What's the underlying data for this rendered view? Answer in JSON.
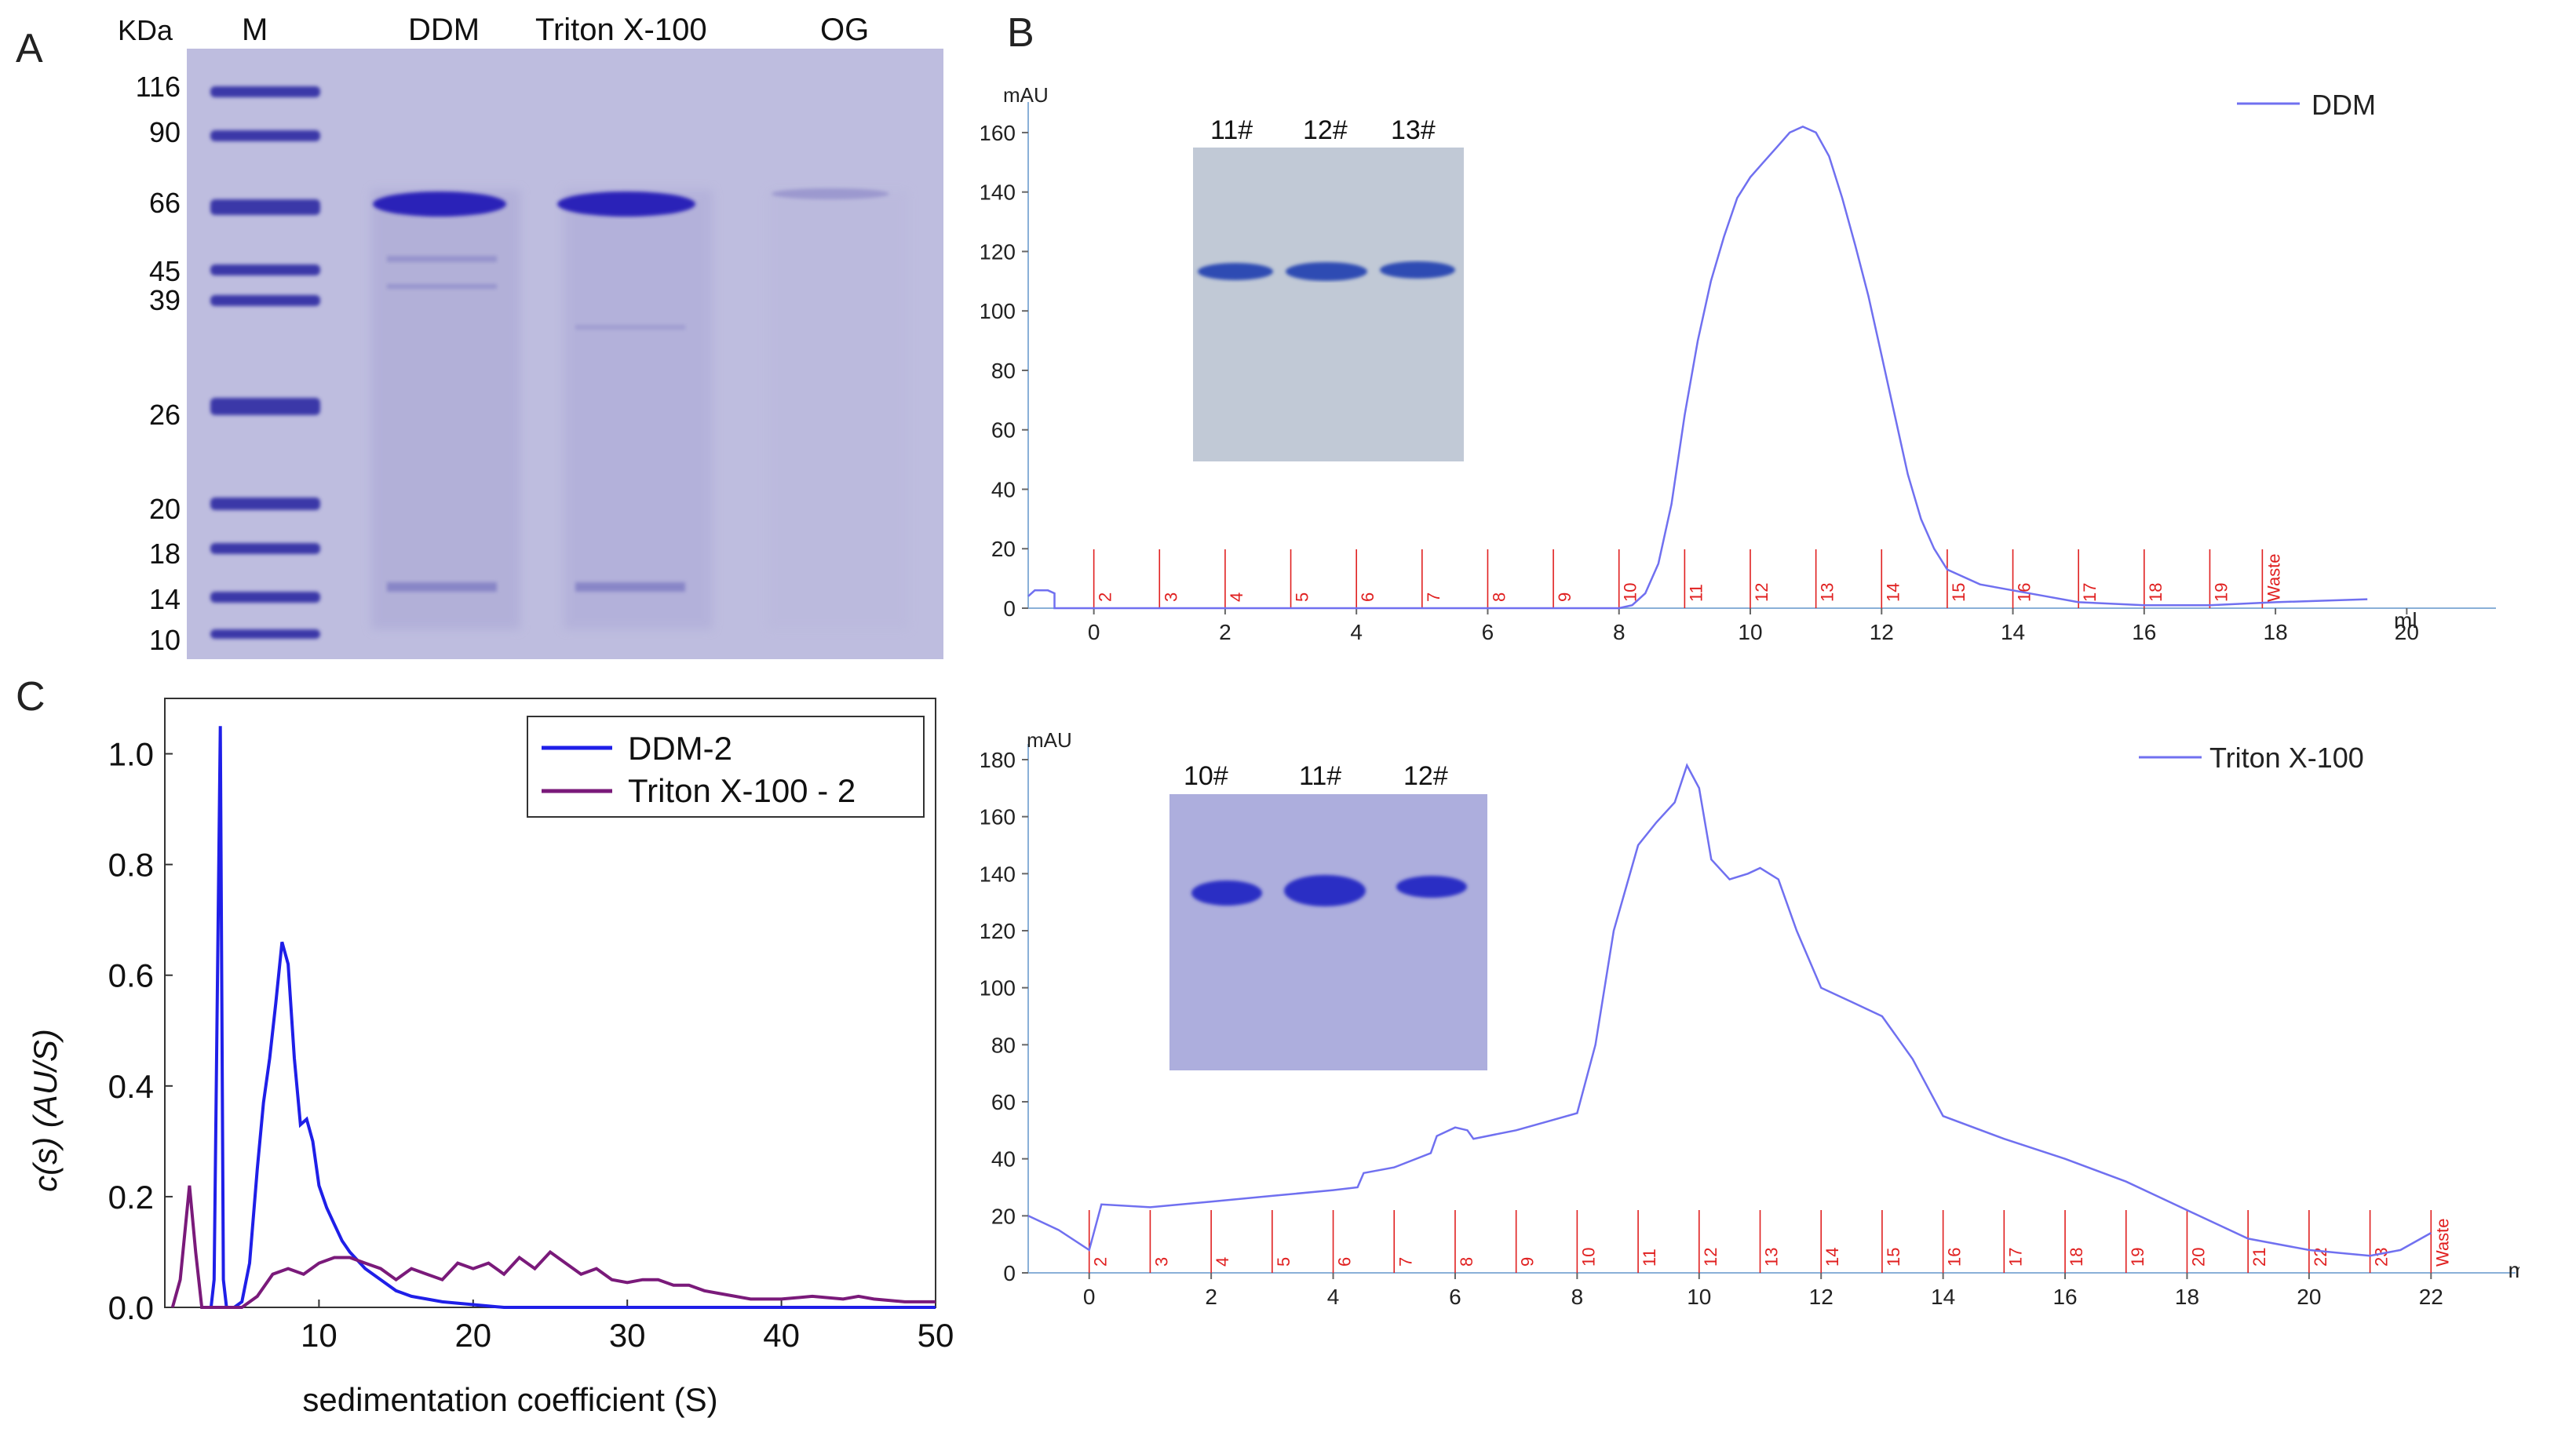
{
  "panels": {
    "a": "A",
    "b": "B",
    "c": "C"
  },
  "gelA": {
    "kda_label": "KDa",
    "lanes": [
      "M",
      "DDM",
      "Triton X-100",
      "OG"
    ],
    "markers": [
      "116",
      "90",
      "66",
      "45",
      "39",
      "26",
      "20",
      "18",
      "14",
      "10"
    ]
  },
  "inset1": {
    "lanes": [
      "11#",
      "12#",
      "13#"
    ]
  },
  "inset2": {
    "lanes": [
      "10#",
      "11#",
      "12#"
    ]
  },
  "chart_data": [
    {
      "type": "line",
      "title": "",
      "legend": [
        "DDM"
      ],
      "ylabel": "mAU",
      "xlabel": "ml",
      "xlim": [
        -1,
        21
      ],
      "ylim": [
        0,
        165
      ],
      "x_ticks": [
        0,
        2,
        4,
        6,
        8,
        10,
        12,
        14,
        16,
        18,
        20
      ],
      "y_ticks": [
        0,
        20,
        40,
        60,
        80,
        100,
        120,
        140,
        160
      ],
      "fractions": [
        "2",
        "3",
        "4",
        "5",
        "6",
        "7",
        "8",
        "9",
        "10",
        "11",
        "12",
        "13",
        "14",
        "15",
        "16",
        "17",
        "18",
        "19",
        "Waste"
      ],
      "fraction_x": [
        0,
        1,
        2,
        3,
        4,
        5,
        6,
        7,
        8,
        9,
        10,
        11,
        12,
        13,
        14,
        15,
        16,
        17,
        17.8
      ],
      "series": [
        {
          "name": "DDM",
          "color": "#7070f0",
          "x": [
            -1,
            -0.9,
            -0.7,
            -0.6,
            -0.6,
            0,
            2,
            4,
            6,
            7,
            8,
            8.2,
            8.4,
            8.6,
            8.8,
            9,
            9.2,
            9.4,
            9.6,
            9.8,
            10,
            10.2,
            10.4,
            10.6,
            10.8,
            11,
            11.2,
            11.4,
            11.6,
            11.8,
            12,
            12.2,
            12.4,
            12.6,
            12.8,
            13,
            13.5,
            14,
            14.5,
            15,
            16,
            17,
            18,
            19.4
          ],
          "y": [
            4,
            6,
            6,
            5,
            0,
            0,
            0,
            0,
            0,
            0,
            0,
            1,
            5,
            15,
            35,
            65,
            90,
            110,
            125,
            138,
            145,
            150,
            155,
            160,
            162,
            160,
            152,
            138,
            122,
            105,
            85,
            65,
            45,
            30,
            20,
            13,
            8,
            6,
            4,
            2,
            1,
            1,
            2,
            3
          ]
        }
      ]
    },
    {
      "type": "line",
      "title": "",
      "legend": [
        "Triton X-100"
      ],
      "ylabel": "mAU",
      "xlabel": "ml",
      "xlim": [
        -1,
        23
      ],
      "ylim": [
        0,
        180
      ],
      "x_ticks": [
        0,
        2,
        4,
        6,
        8,
        10,
        12,
        14,
        16,
        18,
        20,
        22
      ],
      "y_ticks": [
        0,
        20,
        40,
        60,
        80,
        100,
        120,
        140,
        160,
        180
      ],
      "fractions": [
        "2",
        "3",
        "4",
        "5",
        "6",
        "7",
        "8",
        "9",
        "10",
        "11",
        "12",
        "13",
        "14",
        "15",
        "16",
        "17",
        "18",
        "19",
        "20",
        "21",
        "22",
        "23",
        "Waste"
      ],
      "fraction_x": [
        0,
        1,
        2,
        3,
        4,
        5,
        6,
        7,
        8,
        9,
        10,
        11,
        12,
        13,
        14,
        15,
        16,
        17,
        18,
        19,
        20,
        21,
        22
      ],
      "series": [
        {
          "name": "Triton X-100",
          "color": "#7070f0",
          "x": [
            -1,
            -0.5,
            0,
            0.2,
            1,
            2,
            3,
            4,
            4.4,
            4.5,
            5,
            5.6,
            5.7,
            6,
            6.2,
            6.3,
            7,
            7.5,
            8,
            8.3,
            8.6,
            9,
            9.3,
            9.6,
            9.8,
            10,
            10.2,
            10.5,
            10.8,
            11,
            11.3,
            11.6,
            12,
            12.5,
            13,
            13.5,
            14,
            15,
            16,
            17,
            18,
            19,
            20,
            20.5,
            21,
            21.5,
            22
          ],
          "y": [
            20,
            15,
            8,
            24,
            23,
            25,
            27,
            29,
            30,
            35,
            37,
            42,
            48,
            51,
            50,
            47,
            50,
            53,
            56,
            80,
            120,
            150,
            158,
            165,
            178,
            170,
            145,
            138,
            140,
            142,
            138,
            120,
            100,
            95,
            90,
            75,
            55,
            47,
            40,
            32,
            22,
            12,
            8,
            7,
            6,
            8,
            14
          ]
        }
      ]
    },
    {
      "type": "line",
      "title": "",
      "xlabel": "sedimentation coefficient (S)",
      "ylabel": "c(s) (AU/S)",
      "xlim": [
        0,
        50
      ],
      "ylim": [
        0,
        1.1
      ],
      "x_ticks": [
        10,
        20,
        30,
        40,
        50
      ],
      "y_ticks": [
        0.0,
        0.2,
        0.4,
        0.6,
        0.8,
        1.0
      ],
      "legend_position": "top-right",
      "series": [
        {
          "name": "DDM-2",
          "color": "#1f1fe8",
          "x": [
            3,
            3.2,
            3.6,
            3.8,
            4,
            4.2,
            4.5,
            5,
            5.5,
            6,
            6.4,
            6.8,
            7.2,
            7.6,
            8,
            8.4,
            8.8,
            9.2,
            9.6,
            10,
            10.5,
            11,
            11.5,
            12,
            13,
            14,
            15,
            16,
            17,
            18,
            20,
            22,
            25,
            50
          ],
          "y": [
            0,
            0.05,
            1.05,
            0.05,
            0,
            0,
            0,
            0.01,
            0.08,
            0.25,
            0.37,
            0.45,
            0.55,
            0.66,
            0.62,
            0.45,
            0.33,
            0.34,
            0.3,
            0.22,
            0.18,
            0.15,
            0.12,
            0.1,
            0.07,
            0.05,
            0.03,
            0.02,
            0.015,
            0.01,
            0.005,
            0,
            0,
            0
          ]
        },
        {
          "name": "Triton X-100 - 2",
          "color": "#7a1a7a",
          "x": [
            0.5,
            1,
            1.6,
            2,
            2.4,
            2.8,
            3.5,
            5,
            6,
            7,
            8,
            9,
            10,
            11,
            12,
            13,
            14,
            15,
            16,
            17,
            18,
            19,
            20,
            21,
            22,
            23,
            24,
            25,
            26,
            27,
            28,
            29,
            30,
            31,
            32,
            33,
            34,
            35,
            36,
            37,
            38,
            40,
            42,
            44,
            45,
            46,
            48,
            50
          ],
          "y": [
            0,
            0.05,
            0.22,
            0.1,
            0,
            0,
            0,
            0,
            0.02,
            0.06,
            0.07,
            0.06,
            0.08,
            0.09,
            0.09,
            0.08,
            0.07,
            0.05,
            0.07,
            0.06,
            0.05,
            0.08,
            0.07,
            0.08,
            0.06,
            0.09,
            0.07,
            0.1,
            0.08,
            0.06,
            0.07,
            0.05,
            0.045,
            0.05,
            0.05,
            0.04,
            0.04,
            0.03,
            0.025,
            0.02,
            0.015,
            0.015,
            0.02,
            0.015,
            0.02,
            0.015,
            0.01,
            0.01
          ]
        }
      ]
    }
  ]
}
